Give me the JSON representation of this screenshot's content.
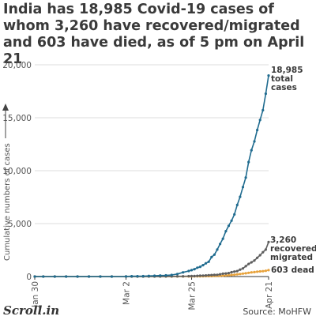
{
  "title": "India has 18,985 Covid-19 cases of whom 3,260 have recovered/migrated and 603 have died, as of 5 pm on April 21",
  "brand": "Scroll.in",
  "source": "Source: MoHFW",
  "chart_data": {
    "type": "line",
    "title": "India has 18,985 Covid-19 cases of whom 3,260 have recovered/migrated and 603 have died, as of 5 pm on April 21",
    "ylabel": "Cumulative numbers of cases",
    "xlabel": "",
    "ylim": [
      0,
      20000
    ],
    "yticks": [
      0,
      5000,
      10000,
      15000,
      20000
    ],
    "ytick_labels": [
      "0",
      "5,000",
      "10,000",
      "15,000",
      "20,000"
    ],
    "x_start": "Jan 30",
    "x_end": "Apr 21",
    "xticks": [
      "Jan 30",
      "Mar 2",
      "Mar 25",
      "Apr 21"
    ],
    "grid": "horizontal",
    "series": [
      {
        "name": "total cases",
        "end_label": [
          "18,985",
          "total",
          "cases"
        ],
        "color": "#1f6b8f",
        "x": [
          "Jan 30",
          "Feb 2",
          "Feb 6",
          "Feb 10",
          "Feb 14",
          "Feb 18",
          "Feb 22",
          "Feb 26",
          "Mar 2",
          "Mar 4",
          "Mar 6",
          "Mar 8",
          "Mar 10",
          "Mar 12",
          "Mar 14",
          "Mar 16",
          "Mar 18",
          "Mar 20",
          "Mar 22",
          "Mar 24",
          "Mar 25",
          "Mar 26",
          "Mar 27",
          "Mar 28",
          "Mar 29",
          "Mar 30",
          "Mar 31",
          "Apr 1",
          "Apr 2",
          "Apr 3",
          "Apr 4",
          "Apr 5",
          "Apr 6",
          "Apr 7",
          "Apr 8",
          "Apr 9",
          "Apr 10",
          "Apr 11",
          "Apr 12",
          "Apr 13",
          "Apr 14",
          "Apr 15",
          "Apr 16",
          "Apr 17",
          "Apr 18",
          "Apr 19",
          "Apr 20",
          "Apr 21"
        ],
        "values": [
          1,
          3,
          3,
          3,
          3,
          3,
          3,
          3,
          5,
          28,
          31,
          39,
          56,
          73,
          100,
          114,
          151,
          236,
          396,
          519,
          606,
          694,
          834,
          918,
          1071,
          1251,
          1397,
          1834,
          2069,
          2547,
          3072,
          3577,
          4281,
          4789,
          5274,
          5865,
          6761,
          7529,
          8447,
          9352,
          10815,
          11933,
          12759,
          13835,
          14792,
          15712,
          17265,
          18985
        ]
      },
      {
        "name": "recovered/migrated",
        "end_label": [
          "3,260",
          "recovered/",
          "migrated"
        ],
        "color": "#5e5e5e",
        "x": [
          "Jan 30",
          "Feb 2",
          "Feb 6",
          "Feb 10",
          "Feb 14",
          "Feb 18",
          "Feb 22",
          "Feb 26",
          "Mar 2",
          "Mar 4",
          "Mar 6",
          "Mar 8",
          "Mar 10",
          "Mar 12",
          "Mar 14",
          "Mar 16",
          "Mar 18",
          "Mar 20",
          "Mar 22",
          "Mar 24",
          "Mar 25",
          "Mar 26",
          "Mar 27",
          "Mar 28",
          "Mar 29",
          "Mar 30",
          "Mar 31",
          "Apr 1",
          "Apr 2",
          "Apr 3",
          "Apr 4",
          "Apr 5",
          "Apr 6",
          "Apr 7",
          "Apr 8",
          "Apr 9",
          "Apr 10",
          "Apr 11",
          "Apr 12",
          "Apr 13",
          "Apr 14",
          "Apr 15",
          "Apr 16",
          "Apr 17",
          "Apr 18",
          "Apr 19",
          "Apr 20",
          "Apr 21"
        ],
        "values": [
          0,
          0,
          0,
          0,
          0,
          3,
          3,
          3,
          3,
          3,
          3,
          3,
          4,
          4,
          10,
          13,
          14,
          20,
          24,
          40,
          43,
          45,
          66,
          80,
          86,
          102,
          124,
          144,
          155,
          163,
          213,
          267,
          291,
          326,
          411,
          473,
          516,
          653,
          765,
          980,
          1190,
          1344,
          1515,
          1767,
          2015,
          2302,
          2547,
          3260
        ]
      },
      {
        "name": "dead",
        "end_label": [
          "603 dead"
        ],
        "color": "#e8a33d",
        "x": [
          "Jan 30",
          "Feb 2",
          "Feb 6",
          "Feb 10",
          "Feb 14",
          "Feb 18",
          "Feb 22",
          "Feb 26",
          "Mar 2",
          "Mar 4",
          "Mar 6",
          "Mar 8",
          "Mar 10",
          "Mar 12",
          "Mar 14",
          "Mar 16",
          "Mar 18",
          "Mar 20",
          "Mar 22",
          "Mar 24",
          "Mar 25",
          "Mar 26",
          "Mar 27",
          "Mar 28",
          "Mar 29",
          "Mar 30",
          "Mar 31",
          "Apr 1",
          "Apr 2",
          "Apr 3",
          "Apr 4",
          "Apr 5",
          "Apr 6",
          "Apr 7",
          "Apr 8",
          "Apr 9",
          "Apr 10",
          "Apr 11",
          "Apr 12",
          "Apr 13",
          "Apr 14",
          "Apr 15",
          "Apr 16",
          "Apr 17",
          "Apr 18",
          "Apr 19",
          "Apr 20",
          "Apr 21"
        ],
        "values": [
          0,
          0,
          0,
          0,
          0,
          0,
          0,
          0,
          0,
          0,
          0,
          0,
          0,
          1,
          2,
          2,
          3,
          4,
          7,
          10,
          10,
          16,
          19,
          24,
          32,
          35,
          35,
          41,
          53,
          62,
          68,
          83,
          111,
          124,
          149,
          169,
          206,
          242,
          273,
          308,
          353,
          392,
          420,
          452,
          488,
          507,
          543,
          603
        ]
      }
    ]
  }
}
